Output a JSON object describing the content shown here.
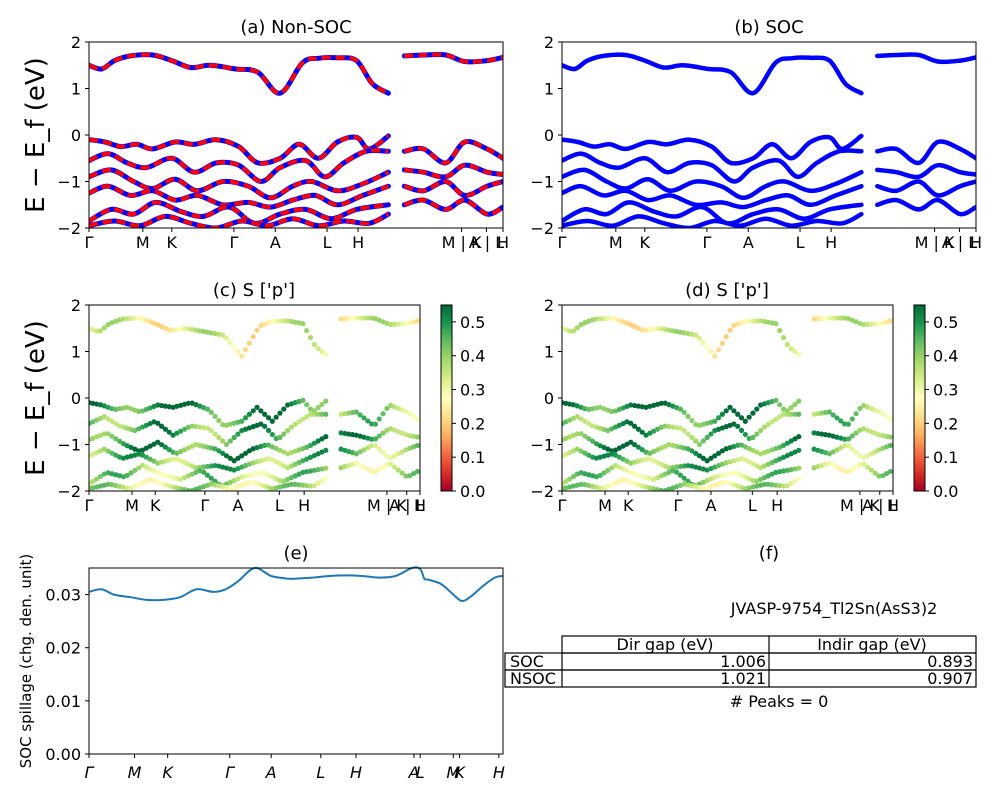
{
  "figure": {
    "panel_titles": {
      "a": "(a) Non-SOC",
      "b": "(b) SOC",
      "c": "(c)  S ['p']",
      "d": "(d) S ['p']",
      "e": "(e)",
      "f": "(f)"
    },
    "band_ylabel": "E − E_f (eV)",
    "spillage_ylabel": "SOC spillage (chg. den. unit)"
  },
  "chart_data": [
    {
      "panel": "a",
      "type": "line",
      "title": "(a) Non-SOC",
      "ylabel": "E − E_f (eV)",
      "ylim": [
        -2,
        2
      ],
      "yticks": [
        "2",
        "1",
        "0",
        "−1",
        "−2"
      ],
      "kpath_labels": [
        "Γ",
        "M",
        "K",
        "Γ",
        "A",
        "L",
        "H",
        "A | L",
        "M | K",
        "H"
      ],
      "colors": {
        "primary": "#ff0000",
        "secondary": "#0000ff"
      },
      "series": [
        {
          "x": [
            0,
            0.04,
            0.08,
            0.13,
            0.2,
            0.26,
            0.32,
            0.38,
            0.46,
            0.53,
            0.6,
            0.67,
            0.72,
            0.78,
            0.84,
            0.89,
            0.94
          ],
          "values": [
            1.5,
            1.42,
            1.6,
            1.7,
            1.72,
            1.6,
            1.45,
            1.5,
            1.42,
            1.35,
            0.9,
            1.55,
            1.65,
            1.66,
            1.6,
            1.1,
            0.9
          ]
        },
        {
          "x": [
            0.99,
            1.05,
            1.12,
            1.18,
            1.25,
            1.3
          ],
          "values": [
            1.7,
            1.72,
            1.72,
            1.58,
            1.6,
            1.67
          ]
        },
        {
          "x": [
            0,
            0.05,
            0.1,
            0.15,
            0.2,
            0.27,
            0.33,
            0.4,
            0.47,
            0.53,
            0.6,
            0.66,
            0.72,
            0.78,
            0.84,
            0.88,
            0.94
          ],
          "values": [
            -0.1,
            -0.15,
            -0.25,
            -0.2,
            -0.3,
            -0.15,
            -0.2,
            -0.1,
            -0.25,
            -0.6,
            -0.5,
            -0.2,
            -0.5,
            -0.15,
            -0.05,
            -0.3,
            -0.02
          ]
        },
        {
          "x": [
            0,
            0.06,
            0.12,
            0.18,
            0.26,
            0.33,
            0.4,
            0.47,
            0.54,
            0.6,
            0.68,
            0.74,
            0.8,
            0.87,
            0.94
          ],
          "values": [
            -0.55,
            -0.4,
            -0.6,
            -0.7,
            -0.5,
            -0.8,
            -0.6,
            -0.65,
            -1.0,
            -0.7,
            -0.55,
            -0.9,
            -0.6,
            -0.35,
            -0.35
          ]
        },
        {
          "x": [
            0,
            0.07,
            0.14,
            0.2,
            0.27,
            0.34,
            0.42,
            0.5,
            0.57,
            0.64,
            0.7,
            0.78,
            0.86,
            0.94
          ],
          "values": [
            -0.9,
            -0.75,
            -1.0,
            -1.15,
            -0.95,
            -1.2,
            -1.0,
            -1.1,
            -1.35,
            -1.1,
            -1.0,
            -1.2,
            -1.05,
            -0.8
          ]
        },
        {
          "x": [
            0,
            0.06,
            0.13,
            0.2,
            0.27,
            0.34,
            0.42,
            0.5,
            0.57,
            0.64,
            0.71,
            0.78,
            0.86,
            0.94
          ],
          "values": [
            -1.25,
            -1.1,
            -1.3,
            -1.2,
            -1.4,
            -1.3,
            -1.5,
            -1.45,
            -1.55,
            -1.4,
            -1.3,
            -1.5,
            -1.3,
            -1.1
          ]
        },
        {
          "x": [
            0,
            0.07,
            0.14,
            0.21,
            0.29,
            0.36,
            0.44,
            0.52,
            0.6,
            0.68,
            0.76,
            0.84,
            0.94
          ],
          "values": [
            -1.85,
            -1.6,
            -1.7,
            -1.45,
            -1.65,
            -1.75,
            -1.55,
            -1.9,
            -1.7,
            -1.6,
            -1.8,
            -1.6,
            -1.5
          ]
        },
        {
          "x": [
            0,
            0.08,
            0.16,
            0.24,
            0.32,
            0.4,
            0.48,
            0.56,
            0.64,
            0.72,
            0.8,
            0.88,
            0.94
          ],
          "values": [
            -1.95,
            -1.85,
            -1.95,
            -1.75,
            -1.9,
            -2.0,
            -1.85,
            -1.95,
            -1.8,
            -1.95,
            -1.85,
            -1.9,
            -1.7
          ]
        },
        {
          "x": [
            0.99,
            1.05,
            1.12,
            1.18,
            1.25,
            1.3
          ],
          "values": [
            -0.35,
            -0.3,
            -0.6,
            -0.15,
            -0.3,
            -0.5
          ]
        },
        {
          "x": [
            0.99,
            1.05,
            1.12,
            1.18,
            1.25,
            1.3
          ],
          "values": [
            -0.75,
            -0.8,
            -0.9,
            -0.65,
            -0.8,
            -0.85
          ]
        },
        {
          "x": [
            0.99,
            1.05,
            1.12,
            1.18,
            1.25,
            1.3
          ],
          "values": [
            -1.1,
            -1.2,
            -1.0,
            -1.3,
            -1.1,
            -1.0
          ]
        },
        {
          "x": [
            0.99,
            1.05,
            1.12,
            1.18,
            1.25,
            1.3
          ],
          "values": [
            -1.5,
            -1.4,
            -1.6,
            -1.4,
            -1.7,
            -1.55
          ]
        }
      ]
    },
    {
      "panel": "b",
      "type": "line",
      "title": "(b) SOC",
      "ylim": [
        -2,
        2
      ],
      "yticks": [
        "2",
        "1",
        "0",
        "−1",
        "−2"
      ],
      "kpath_labels": [
        "Γ",
        "M",
        "K",
        "Γ",
        "A",
        "L",
        "H",
        "A | L",
        "M | K",
        "H"
      ],
      "colors": {
        "primary": "#0000ff"
      },
      "series_note": "same band energies as panel (a)"
    },
    {
      "panel": "c",
      "type": "scatter",
      "title": "(c)  S ['p']",
      "ylabel": "E − E_f (eV)",
      "ylim": [
        -2,
        2
      ],
      "yticks": [
        "2",
        "1",
        "0",
        "−1",
        "−2"
      ],
      "kpath_labels": [
        "Γ",
        "M",
        "K",
        "Γ",
        "A",
        "L",
        "H",
        "A | L",
        "M | K",
        "H"
      ],
      "colorbar": {
        "colormap": "RdYlGn",
        "range": [
          0.0,
          0.55
        ],
        "ticks": [
          "0.5",
          "0.4",
          "0.3",
          "0.2",
          "0.1",
          "0.0"
        ],
        "tick_values": [
          0.5,
          0.4,
          0.3,
          0.2,
          0.1,
          0.0
        ]
      },
      "band_weights": [
        0.3,
        0.3,
        0.5,
        0.45,
        0.48,
        0.42,
        0.38,
        0.35,
        0.38,
        0.45,
        0.4,
        0.35
      ]
    },
    {
      "panel": "d",
      "type": "scatter",
      "title": "(d) S ['p']",
      "ylim": [
        -2,
        2
      ],
      "yticks": [
        "2",
        "1",
        "0",
        "−1",
        "−2"
      ],
      "kpath_labels": [
        "Γ",
        "M",
        "K",
        "Γ",
        "A",
        "L",
        "H",
        "A | L",
        "M | K",
        "H"
      ],
      "colorbar": {
        "colormap": "RdYlGn",
        "range": [
          0.0,
          0.55
        ],
        "ticks": [
          "0.5",
          "0.4",
          "0.3",
          "0.2",
          "0.1",
          "0.0"
        ],
        "tick_values": [
          0.5,
          0.4,
          0.3,
          0.2,
          0.1,
          0.0
        ]
      },
      "band_weights": [
        0.3,
        0.3,
        0.5,
        0.45,
        0.48,
        0.42,
        0.38,
        0.35,
        0.38,
        0.45,
        0.4,
        0.35
      ]
    },
    {
      "panel": "e",
      "type": "line",
      "title": "(e)",
      "ylabel": "SOC spillage (chg. den. unit)",
      "ylim": [
        0,
        0.035
      ],
      "yticks": [
        "0.03",
        "0.02",
        "0.01",
        "0.00"
      ],
      "kpath_labels": [
        "Γ",
        "M",
        "K",
        "Γ",
        "A",
        "L",
        "H",
        "A",
        "L",
        "M",
        "K",
        "H"
      ],
      "color": "#1f77b4",
      "x": [
        0,
        0.03,
        0.06,
        0.1,
        0.14,
        0.18,
        0.22,
        0.26,
        0.3,
        0.33,
        0.36,
        0.4,
        0.44,
        0.48,
        0.5,
        0.54,
        0.58,
        0.62,
        0.66,
        0.7,
        0.74,
        0.78,
        0.8,
        0.81,
        0.82,
        0.85,
        0.88,
        0.9,
        0.92,
        0.95,
        0.98,
        1.0
      ],
      "values": [
        0.0305,
        0.031,
        0.03,
        0.0295,
        0.029,
        0.029,
        0.0295,
        0.031,
        0.0305,
        0.031,
        0.0325,
        0.035,
        0.0335,
        0.033,
        0.033,
        0.0332,
        0.0335,
        0.0336,
        0.0335,
        0.0332,
        0.0335,
        0.035,
        0.0348,
        0.033,
        0.0328,
        0.032,
        0.03,
        0.0288,
        0.0295,
        0.0315,
        0.0332,
        0.0335
      ]
    }
  ],
  "info_table": {
    "compound": "JVASP-9754_Tl2Sn(AsS3)2",
    "columns": [
      "Dir gap (eV)",
      "Indir gap (eV)"
    ],
    "rows": [
      {
        "label": "SOC",
        "dir": "1.006",
        "indir": "0.893"
      },
      {
        "label": "NSOC",
        "dir": "1.021",
        "indir": "0.907"
      }
    ],
    "peaks": "# Peaks = 0"
  }
}
